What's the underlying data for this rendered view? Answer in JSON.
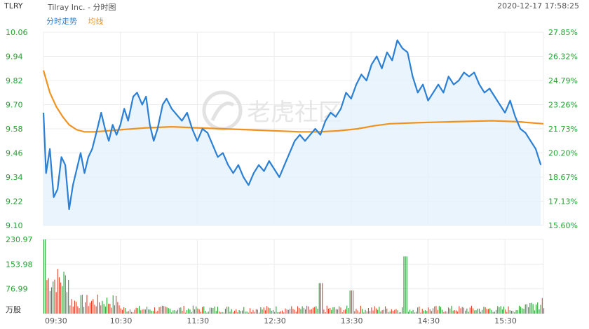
{
  "header": {
    "symbol": "TLRY",
    "title": "Tilray Inc. - 分时图",
    "datetime": "2020-12-17 17:58:25"
  },
  "legend": {
    "price": "分时走势",
    "avg": "均线"
  },
  "colors": {
    "price": "#2b7fd4",
    "avg": "#f0921e",
    "up": "#e8412b",
    "down": "#23a231",
    "axis_left": "#23a231",
    "axis_right": "#23a231",
    "grid": "#ececec",
    "fill": "#e4f1fb"
  },
  "watermark": "老虎社区",
  "chart_data": [
    {
      "type": "line",
      "name": "intraday-price",
      "x_ticks": [
        "09:30",
        "10:30",
        "11:30",
        "12:30",
        "13:30",
        "14:30",
        "15:30"
      ],
      "y_ticks_left": [
        "10.06",
        "9.94",
        "9.82",
        "9.70",
        "9.58",
        "9.46",
        "9.34",
        "9.22",
        "9.10"
      ],
      "y_ticks_right": [
        "27.85%",
        "26.32%",
        "24.79%",
        "23.26%",
        "21.73%",
        "20.20%",
        "18.67%",
        "17.13%",
        "15.60%"
      ],
      "ylim": [
        9.1,
        10.06
      ],
      "xlim_minutes": [
        0,
        390
      ],
      "price_points": [
        [
          0,
          9.66
        ],
        [
          2,
          9.36
        ],
        [
          5,
          9.48
        ],
        [
          8,
          9.24
        ],
        [
          11,
          9.28
        ],
        [
          14,
          9.44
        ],
        [
          17,
          9.4
        ],
        [
          20,
          9.18
        ],
        [
          23,
          9.3
        ],
        [
          26,
          9.38
        ],
        [
          29,
          9.46
        ],
        [
          32,
          9.36
        ],
        [
          35,
          9.44
        ],
        [
          38,
          9.48
        ],
        [
          42,
          9.58
        ],
        [
          45,
          9.66
        ],
        [
          48,
          9.58
        ],
        [
          51,
          9.52
        ],
        [
          54,
          9.6
        ],
        [
          57,
          9.55
        ],
        [
          60,
          9.6
        ],
        [
          63,
          9.68
        ],
        [
          66,
          9.62
        ],
        [
          70,
          9.74
        ],
        [
          73,
          9.76
        ],
        [
          77,
          9.7
        ],
        [
          80,
          9.74
        ],
        [
          83,
          9.6
        ],
        [
          86,
          9.52
        ],
        [
          89,
          9.58
        ],
        [
          93,
          9.7
        ],
        [
          96,
          9.73
        ],
        [
          100,
          9.68
        ],
        [
          104,
          9.65
        ],
        [
          108,
          9.62
        ],
        [
          112,
          9.66
        ],
        [
          116,
          9.58
        ],
        [
          120,
          9.52
        ],
        [
          124,
          9.58
        ],
        [
          128,
          9.56
        ],
        [
          132,
          9.5
        ],
        [
          136,
          9.44
        ],
        [
          140,
          9.46
        ],
        [
          144,
          9.4
        ],
        [
          148,
          9.36
        ],
        [
          152,
          9.4
        ],
        [
          156,
          9.34
        ],
        [
          160,
          9.3
        ],
        [
          164,
          9.36
        ],
        [
          168,
          9.4
        ],
        [
          172,
          9.37
        ],
        [
          176,
          9.42
        ],
        [
          180,
          9.38
        ],
        [
          184,
          9.34
        ],
        [
          188,
          9.4
        ],
        [
          192,
          9.46
        ],
        [
          196,
          9.52
        ],
        [
          200,
          9.55
        ],
        [
          204,
          9.52
        ],
        [
          208,
          9.55
        ],
        [
          212,
          9.58
        ],
        [
          216,
          9.55
        ],
        [
          220,
          9.62
        ],
        [
          224,
          9.66
        ],
        [
          228,
          9.64
        ],
        [
          232,
          9.68
        ],
        [
          236,
          9.76
        ],
        [
          240,
          9.73
        ],
        [
          244,
          9.8
        ],
        [
          248,
          9.85
        ],
        [
          252,
          9.82
        ],
        [
          256,
          9.9
        ],
        [
          260,
          9.94
        ],
        [
          264,
          9.88
        ],
        [
          268,
          9.96
        ],
        [
          272,
          9.92
        ],
        [
          276,
          10.02
        ],
        [
          280,
          9.98
        ],
        [
          284,
          9.96
        ],
        [
          288,
          9.84
        ],
        [
          292,
          9.76
        ],
        [
          296,
          9.8
        ],
        [
          300,
          9.72
        ],
        [
          304,
          9.76
        ],
        [
          308,
          9.8
        ],
        [
          312,
          9.76
        ],
        [
          316,
          9.84
        ],
        [
          320,
          9.8
        ],
        [
          324,
          9.82
        ],
        [
          328,
          9.86
        ],
        [
          332,
          9.84
        ],
        [
          336,
          9.86
        ],
        [
          340,
          9.8
        ],
        [
          344,
          9.76
        ],
        [
          348,
          9.78
        ],
        [
          352,
          9.74
        ],
        [
          356,
          9.7
        ],
        [
          360,
          9.66
        ],
        [
          364,
          9.72
        ],
        [
          368,
          9.64
        ],
        [
          372,
          9.58
        ],
        [
          376,
          9.56
        ],
        [
          380,
          9.52
        ],
        [
          384,
          9.48
        ],
        [
          388,
          9.4
        ]
      ],
      "avg_points": [
        [
          0,
          9.87
        ],
        [
          5,
          9.76
        ],
        [
          10,
          9.69
        ],
        [
          15,
          9.64
        ],
        [
          20,
          9.6
        ],
        [
          26,
          9.575
        ],
        [
          32,
          9.565
        ],
        [
          40,
          9.565
        ],
        [
          50,
          9.57
        ],
        [
          60,
          9.575
        ],
        [
          70,
          9.58
        ],
        [
          80,
          9.585
        ],
        [
          100,
          9.59
        ],
        [
          120,
          9.585
        ],
        [
          140,
          9.58
        ],
        [
          160,
          9.575
        ],
        [
          180,
          9.57
        ],
        [
          200,
          9.565
        ],
        [
          215,
          9.565
        ],
        [
          230,
          9.57
        ],
        [
          245,
          9.58
        ],
        [
          258,
          9.595
        ],
        [
          270,
          9.605
        ],
        [
          290,
          9.61
        ],
        [
          320,
          9.615
        ],
        [
          350,
          9.62
        ],
        [
          370,
          9.615
        ],
        [
          390,
          9.605
        ]
      ]
    },
    {
      "type": "bar",
      "name": "volume",
      "unit_label": "万股",
      "y_ticks": [
        "230.97",
        "153.98",
        "76.99"
      ],
      "ylim": [
        0,
        230.97
      ]
    }
  ]
}
